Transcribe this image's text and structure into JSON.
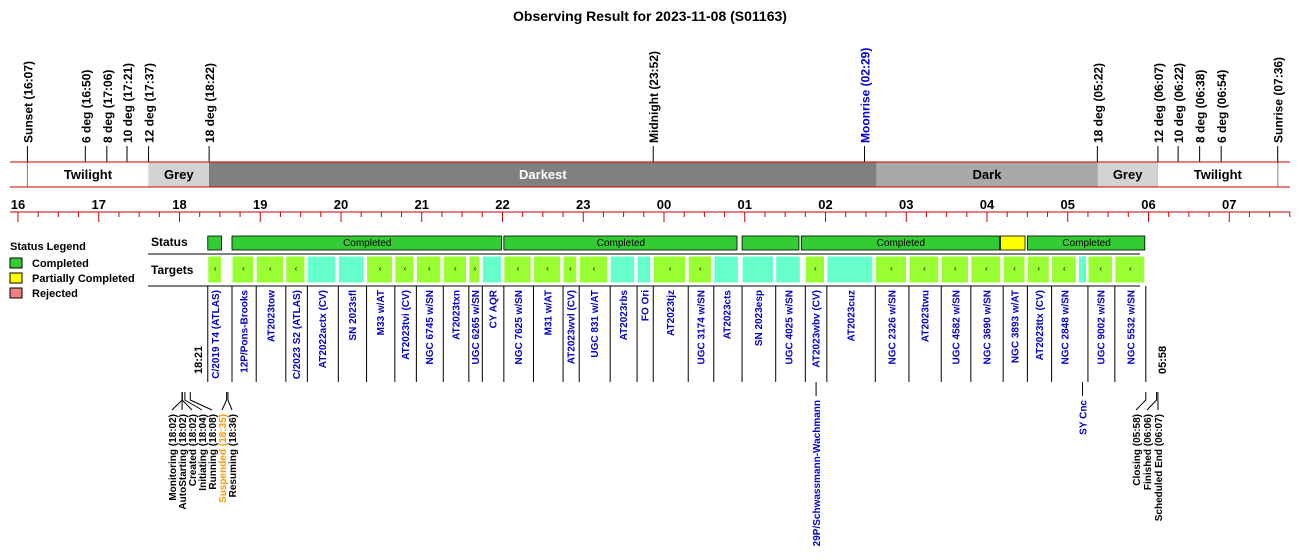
{
  "title": "Observing Result for 2023-11-08 (S01163)",
  "chart_data": {
    "type": "timeline",
    "time_axis": {
      "start": "16:00",
      "end": "08:00",
      "hour_labels": [
        "16",
        "17",
        "18",
        "19",
        "20",
        "21",
        "22",
        "23",
        "00",
        "01",
        "02",
        "03",
        "04",
        "05",
        "06",
        "07"
      ]
    },
    "time_markers": [
      {
        "label": "Sunset (16:07)",
        "time": "16:07",
        "color": "#000000"
      },
      {
        "label": "6 deg (16:50)",
        "time": "16:50",
        "color": "#000000"
      },
      {
        "label": "8 deg (17:06)",
        "time": "17:06",
        "color": "#000000"
      },
      {
        "label": "10 deg (17:21)",
        "time": "17:21",
        "color": "#000000"
      },
      {
        "label": "12 deg (17:37)",
        "time": "17:37",
        "color": "#000000"
      },
      {
        "label": "18 deg (18:22)",
        "time": "18:22",
        "color": "#000000"
      },
      {
        "label": "Midnight (23:52)",
        "time": "23:52",
        "color": "#000000"
      },
      {
        "label": "Moonrise (02:29)",
        "time": "02:29",
        "color": "#0000cc"
      },
      {
        "label": "18 deg (05:22)",
        "time": "05:22",
        "color": "#000000"
      },
      {
        "label": "12 deg (06:07)",
        "time": "06:07",
        "color": "#000000"
      },
      {
        "label": "10 deg (06:22)",
        "time": "06:22",
        "color": "#000000"
      },
      {
        "label": "8 deg (06:38)",
        "time": "06:38",
        "color": "#000000"
      },
      {
        "label": "6 deg (06:54)",
        "time": "06:54",
        "color": "#000000"
      },
      {
        "label": "Sunrise (07:36)",
        "time": "07:36",
        "color": "#000000"
      }
    ],
    "sky_periods": [
      {
        "label": "Twilight",
        "start": "16:07",
        "end": "17:37",
        "color": "#ffffff",
        "text_color": "#000000"
      },
      {
        "label": "Grey",
        "start": "17:37",
        "end": "18:22",
        "color": "#d3d3d3",
        "text_color": "#000000"
      },
      {
        "label": "Darkest",
        "start": "18:22",
        "end": "02:38",
        "color": "#808080",
        "text_color": "#ffffff"
      },
      {
        "label": "Dark",
        "start": "02:38",
        "end": "05:22",
        "color": "#a9a9a9",
        "text_color": "#000000"
      },
      {
        "label": "Grey",
        "start": "05:22",
        "end": "06:07",
        "color": "#d3d3d3",
        "text_color": "#000000"
      },
      {
        "label": "Twilight",
        "start": "06:07",
        "end": "07:36",
        "color": "#ffffff",
        "text_color": "#000000"
      }
    ],
    "row_labels": {
      "status": "Status",
      "targets": "Targets"
    },
    "legend": {
      "title": "Status Legend",
      "items": [
        {
          "label": "Completed",
          "color": "#33cc33"
        },
        {
          "label": "Partially Completed",
          "color": "#ffff00"
        },
        {
          "label": "Rejected",
          "color": "#f08080"
        }
      ]
    },
    "status_segments": [
      {
        "start": "18:21",
        "end": "18:32",
        "label": "",
        "color": "#33cc33"
      },
      {
        "start": "18:39",
        "end": "22:00",
        "label": "Completed",
        "color": "#33cc33"
      },
      {
        "start": "22:01",
        "end": "00:55",
        "label": "Completed",
        "color": "#33cc33"
      },
      {
        "start": "00:58",
        "end": "01:41",
        "label": "",
        "color": "#33cc33"
      },
      {
        "start": "01:42",
        "end": "04:10",
        "label": "Completed",
        "color": "#33cc33"
      },
      {
        "start": "04:10",
        "end": "04:29",
        "label": "",
        "color": "#ffff00"
      },
      {
        "start": "04:30",
        "end": "05:58",
        "label": "Completed",
        "color": "#33cc33"
      }
    ],
    "targets": [
      {
        "name": "C/2019 T4 (ATLAS)",
        "start": "18:21",
        "end": "18:32",
        "kind": "t",
        "label_row": "top"
      },
      {
        "name": "12P/Pons-Brooks",
        "start": "18:39",
        "end": "18:56",
        "kind": "t",
        "label_row": "top"
      },
      {
        "name": "AT2023tow",
        "start": "18:57",
        "end": "19:18",
        "kind": "t",
        "label_row": "top"
      },
      {
        "name": "C/2023 S2 (ATLAS)",
        "start": "19:19",
        "end": "19:34",
        "kind": "t",
        "label_row": "top"
      },
      {
        "name": "AT2022actx (CV)",
        "start": "19:35",
        "end": "19:57",
        "kind": "c",
        "label_row": "top"
      },
      {
        "name": "SN 2023sfl",
        "start": "19:58",
        "end": "20:18",
        "kind": "c",
        "label_row": "top"
      },
      {
        "name": "M33 w/AT",
        "start": "20:19",
        "end": "20:39",
        "kind": "t",
        "label_row": "top"
      },
      {
        "name": "AT2023tvi (CV)",
        "start": "20:40",
        "end": "20:55",
        "kind": "t",
        "label_row": "top"
      },
      {
        "name": "NGC 6745 w/SN",
        "start": "20:56",
        "end": "21:15",
        "kind": "t",
        "label_row": "top"
      },
      {
        "name": "AT2023txn",
        "start": "21:16",
        "end": "21:34",
        "kind": "t",
        "label_row": "top"
      },
      {
        "name": "UGC 6265 w/SN",
        "start": "21:35",
        "end": "21:44",
        "kind": "t",
        "label_row": "top"
      },
      {
        "name": "CY AQR",
        "start": "21:45",
        "end": "22:00",
        "kind": "c",
        "label_row": "top"
      },
      {
        "name": "NGC 7625 w/SN",
        "start": "22:01",
        "end": "22:22",
        "kind": "t",
        "label_row": "top"
      },
      {
        "name": "M31 w/AT",
        "start": "22:23",
        "end": "22:44",
        "kind": "t",
        "label_row": "top"
      },
      {
        "name": "AT2023wvl (CV)",
        "start": "22:45",
        "end": "22:56",
        "kind": "t",
        "label_row": "top"
      },
      {
        "name": "UGC 831 w/AT",
        "start": "22:57",
        "end": "23:19",
        "kind": "t",
        "label_row": "top"
      },
      {
        "name": "AT2023rbs",
        "start": "23:20",
        "end": "23:39",
        "kind": "c",
        "label_row": "top"
      },
      {
        "name": "FO Ori",
        "start": "23:40",
        "end": "23:51",
        "kind": "c",
        "label_row": "top"
      },
      {
        "name": "AT2023tjz",
        "start": "23:52",
        "end": "00:17",
        "kind": "t",
        "label_row": "top"
      },
      {
        "name": "UGC 3174 w/SN",
        "start": "00:18",
        "end": "00:36",
        "kind": "t",
        "label_row": "top"
      },
      {
        "name": "AT2023cts",
        "start": "00:37",
        "end": "00:56",
        "kind": "c",
        "label_row": "top"
      },
      {
        "name": "SN 2023esp",
        "start": "00:58",
        "end": "01:22",
        "kind": "c",
        "label_row": "top"
      },
      {
        "name": "UGC 4025 w/SN",
        "start": "01:23",
        "end": "01:42",
        "kind": "c",
        "label_row": "top"
      },
      {
        "name": "29P/Schwassmann-Wachmann",
        "start": "01:43",
        "end": "02:03",
        "kind": "t",
        "label_row": "bottom"
      },
      {
        "name": "AT2023wbv (CV)",
        "start": "01:45",
        "end": "02:00",
        "kind": "t",
        "label_row": "top"
      },
      {
        "name": "AT2023cuz",
        "start": "02:01",
        "end": "02:36",
        "kind": "c",
        "label_row": "top"
      },
      {
        "name": "NGC 2326 w/SN",
        "start": "02:37",
        "end": "03:01",
        "kind": "t",
        "label_row": "top"
      },
      {
        "name": "AT2023twu",
        "start": "03:02",
        "end": "03:25",
        "kind": "t",
        "label_row": "top"
      },
      {
        "name": "UGC 4582 w/SN",
        "start": "03:26",
        "end": "03:47",
        "kind": "t",
        "label_row": "top"
      },
      {
        "name": "NGC 3690 w/SN",
        "start": "03:48",
        "end": "04:11",
        "kind": "t",
        "label_row": "top"
      },
      {
        "name": "NGC 3893 w/AT",
        "start": "04:12",
        "end": "04:29",
        "kind": "t",
        "label_row": "top"
      },
      {
        "name": "AT2023ttx (CV)",
        "start": "04:30",
        "end": "04:47",
        "kind": "t",
        "label_row": "top"
      },
      {
        "name": "NGC 2848 w/SN",
        "start": "04:48",
        "end": "05:07",
        "kind": "t",
        "label_row": "top"
      },
      {
        "name": "SY Cnc",
        "start": "05:08",
        "end": "05:14",
        "kind": "c",
        "label_row": "bottom"
      },
      {
        "name": "UGC 9002 w/SN",
        "start": "05:15",
        "end": "05:34",
        "kind": "t",
        "label_row": "top"
      },
      {
        "name": "NGC 5532 w/SN",
        "start": "05:35",
        "end": "05:58",
        "kind": "t",
        "label_row": "top"
      }
    ],
    "session_times": {
      "start": "18:21",
      "end": "05:58"
    },
    "events_start": [
      {
        "label": "Monitoring (18:02)",
        "time": "18:02",
        "color": "#000000"
      },
      {
        "label": "AutoStarting (18:02)",
        "time": "18:02",
        "color": "#000000"
      },
      {
        "label": "Created (18:02)",
        "time": "18:02",
        "color": "#000000"
      },
      {
        "label": "Initiating (18:04)",
        "time": "18:04",
        "color": "#000000"
      },
      {
        "label": "Running (18:08)",
        "time": "18:08",
        "color": "#000000"
      },
      {
        "label": "Suspended (18:35)",
        "time": "18:35",
        "color": "#ff9900"
      },
      {
        "label": "Resuming (18:36)",
        "time": "18:36",
        "color": "#000000"
      }
    ],
    "events_end": [
      {
        "label": "Closing (05:58)",
        "time": "05:58",
        "color": "#000000"
      },
      {
        "label": "Finished (06:06)",
        "time": "06:06",
        "color": "#000000"
      },
      {
        "label": "Scheduled End (06:07)",
        "time": "06:07",
        "color": "#000000"
      }
    ],
    "colors": {
      "axis": "#cc0000",
      "target_label": "#0000cc",
      "target_completed": "#99ff33",
      "target_alt": "#66ffcc",
      "legend_border": "#000000"
    }
  }
}
